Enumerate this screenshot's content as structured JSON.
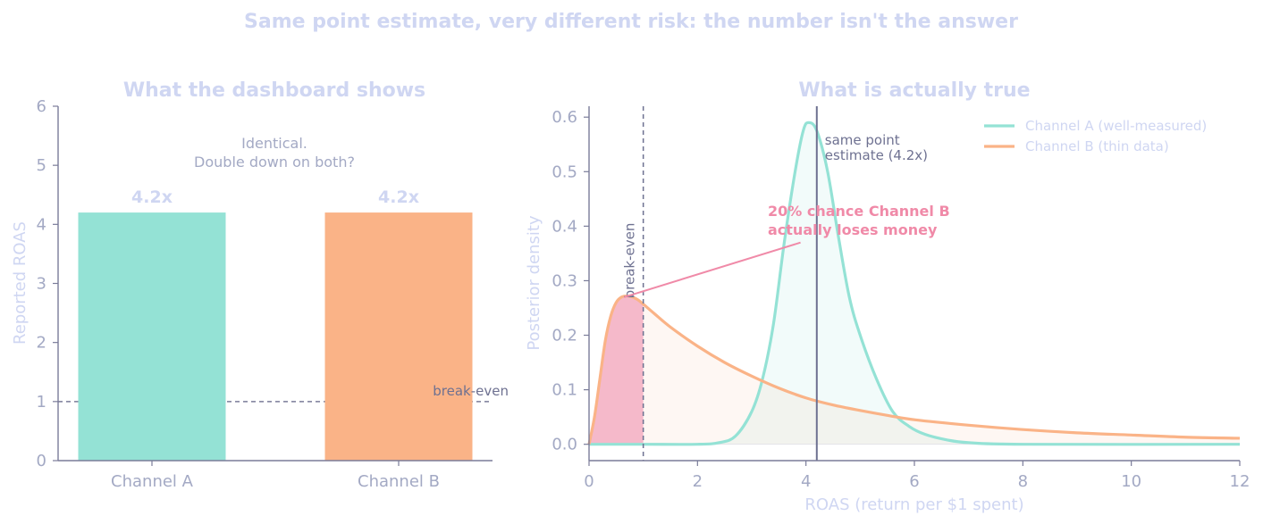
{
  "suptitle": "Same point estimate, very different risk: the number isn't the answer",
  "colors": {
    "title": "#cfd6f2",
    "axis": "#7a7c99",
    "tick": "#a3a9c4",
    "channel_a": "#94e2d5",
    "channel_b": "#fab387",
    "annotation": "#6e7191",
    "risk": "#f08aa8",
    "risk_fill": "#f5b9ca"
  },
  "chart_data": [
    {
      "type": "bar",
      "title": "What the dashboard shows",
      "ylabel": "Reported ROAS",
      "xlabel": "",
      "categories": [
        "Channel A",
        "Channel B"
      ],
      "values": [
        4.2,
        4.2
      ],
      "value_labels": [
        "4.2x",
        "4.2x"
      ],
      "ylim": [
        0,
        6
      ],
      "yticks": [
        0,
        1,
        2,
        3,
        4,
        5,
        6
      ],
      "bar_colors": [
        "#94e2d5",
        "#fab387"
      ],
      "reference_line": {
        "y": 1,
        "label": "break-even"
      },
      "annotation": {
        "line1": "Identical.",
        "line2": "Double down on both?"
      },
      "grid": false
    },
    {
      "type": "line",
      "title": "What is actually true",
      "xlabel": "ROAS (return per $1 spent)",
      "ylabel": "Posterior density",
      "xlim": [
        0,
        12
      ],
      "ylim": [
        -0.03,
        0.62
      ],
      "xticks": [
        0,
        2,
        4,
        6,
        8,
        10,
        12
      ],
      "yticks": [
        0.0,
        0.1,
        0.2,
        0.3,
        0.4,
        0.5,
        0.6
      ],
      "ytick_labels": [
        "0.0",
        "0.1",
        "0.2",
        "0.3",
        "0.4",
        "0.5",
        "0.6"
      ],
      "series": [
        {
          "name": "Channel A  (well-measured)",
          "color": "#94e2d5",
          "points": [
            [
              0,
              0
            ],
            [
              1,
              0
            ],
            [
              2,
              0
            ],
            [
              2.4,
              0.003
            ],
            [
              2.7,
              0.015
            ],
            [
              3.0,
              0.06
            ],
            [
              3.2,
              0.12
            ],
            [
              3.4,
              0.22
            ],
            [
              3.6,
              0.37
            ],
            [
              3.8,
              0.5
            ],
            [
              3.95,
              0.575
            ],
            [
              4.05,
              0.59
            ],
            [
              4.2,
              0.575
            ],
            [
              4.4,
              0.5
            ],
            [
              4.6,
              0.38
            ],
            [
              4.8,
              0.27
            ],
            [
              5.0,
              0.2
            ],
            [
              5.3,
              0.12
            ],
            [
              5.6,
              0.06
            ],
            [
              5.9,
              0.033
            ],
            [
              6.2,
              0.018
            ],
            [
              6.6,
              0.008
            ],
            [
              7.0,
              0.003
            ],
            [
              8,
              0
            ],
            [
              12,
              0
            ]
          ]
        },
        {
          "name": "Channel B  (thin data)",
          "color": "#fab387",
          "points": [
            [
              0,
              0
            ],
            [
              0.1,
              0.05
            ],
            [
              0.2,
              0.12
            ],
            [
              0.3,
              0.19
            ],
            [
              0.4,
              0.235
            ],
            [
              0.5,
              0.26
            ],
            [
              0.6,
              0.27
            ],
            [
              0.7,
              0.272
            ],
            [
              0.8,
              0.27
            ],
            [
              0.9,
              0.265
            ],
            [
              1.0,
              0.257
            ],
            [
              1.2,
              0.24
            ],
            [
              1.5,
              0.215
            ],
            [
              2.0,
              0.18
            ],
            [
              2.5,
              0.15
            ],
            [
              3.0,
              0.125
            ],
            [
              3.5,
              0.103
            ],
            [
              4.0,
              0.085
            ],
            [
              4.5,
              0.072
            ],
            [
              5.0,
              0.062
            ],
            [
              5.5,
              0.053
            ],
            [
              6.0,
              0.045
            ],
            [
              7.0,
              0.035
            ],
            [
              8.0,
              0.027
            ],
            [
              9.0,
              0.021
            ],
            [
              10.0,
              0.017
            ],
            [
              11.0,
              0.013
            ],
            [
              12.0,
              0.011
            ]
          ]
        }
      ],
      "vlines": [
        {
          "x": 1,
          "label": "break-even",
          "style": "dashed"
        },
        {
          "x": 4.2,
          "label_line1": "same point",
          "label_line2": "estimate (4.2x)",
          "style": "solid"
        }
      ],
      "risk_annotation": {
        "line1": "20% chance Channel B",
        "line2": "actually loses money",
        "tip": [
          0.65,
          0.27
        ],
        "tail": [
          3.9,
          0.37
        ]
      },
      "legend": "top-right",
      "grid": false
    }
  ]
}
